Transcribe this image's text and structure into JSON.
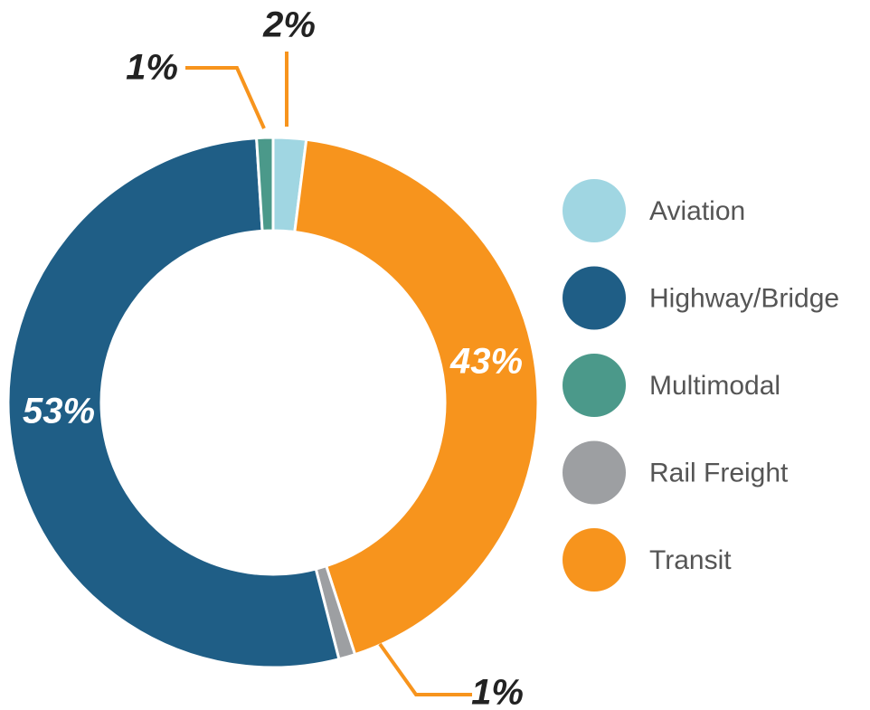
{
  "chart_data": {
    "type": "donut",
    "categories": [
      "Aviation",
      "Transit",
      "Rail Freight",
      "Highway/Bridge",
      "Multimodal"
    ],
    "values": [
      2,
      43,
      1,
      53,
      1
    ],
    "value_labels": [
      "2%",
      "43%",
      "1%",
      "53%",
      "1%"
    ],
    "colors": [
      "#a0d6e2",
      "#f7941d",
      "#9d9fa2",
      "#1f5e86",
      "#4b998a"
    ],
    "legend": [
      "Aviation",
      "Highway/Bridge",
      "Multimodal",
      "Rail Freight",
      "Transit"
    ]
  }
}
